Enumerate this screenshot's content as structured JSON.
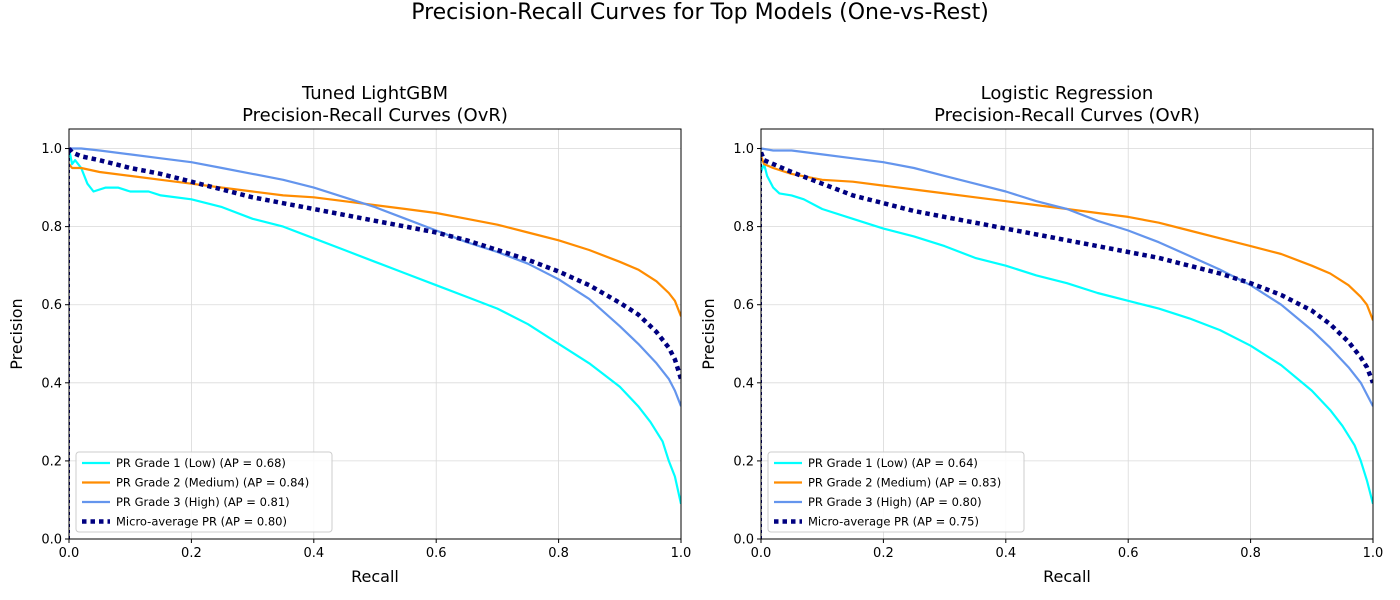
{
  "figure": {
    "title": "Precision-Recall Curves for Top Models (One-vs-Rest)"
  },
  "chart_data": [
    {
      "type": "line",
      "title_line1": "Tuned LightGBM",
      "title_line2": "Precision-Recall Curves (OvR)",
      "xlabel": "Recall",
      "ylabel": "Precision",
      "xlim": [
        0.0,
        1.0
      ],
      "ylim": [
        0.0,
        1.05
      ],
      "xticks": [
        0.0,
        0.2,
        0.4,
        0.6,
        0.8,
        1.0
      ],
      "yticks": [
        0.0,
        0.2,
        0.4,
        0.6,
        0.8,
        1.0
      ],
      "grid": true,
      "legend_position": "lower-left",
      "series": [
        {
          "name": "PR Grade 1 (Low) (AP = 0.68)",
          "color": "#00ffff",
          "style": "solid",
          "points": [
            [
              0,
              1.0
            ],
            [
              0.005,
              0.96
            ],
            [
              0.01,
              0.97
            ],
            [
              0.02,
              0.95
            ],
            [
              0.03,
              0.91
            ],
            [
              0.04,
              0.89
            ],
            [
              0.06,
              0.9
            ],
            [
              0.08,
              0.9
            ],
            [
              0.1,
              0.89
            ],
            [
              0.13,
              0.89
            ],
            [
              0.15,
              0.88
            ],
            [
              0.2,
              0.87
            ],
            [
              0.25,
              0.85
            ],
            [
              0.3,
              0.82
            ],
            [
              0.35,
              0.8
            ],
            [
              0.4,
              0.77
            ],
            [
              0.45,
              0.74
            ],
            [
              0.5,
              0.71
            ],
            [
              0.55,
              0.68
            ],
            [
              0.6,
              0.65
            ],
            [
              0.65,
              0.62
            ],
            [
              0.7,
              0.59
            ],
            [
              0.75,
              0.55
            ],
            [
              0.8,
              0.5
            ],
            [
              0.85,
              0.45
            ],
            [
              0.9,
              0.39
            ],
            [
              0.93,
              0.34
            ],
            [
              0.95,
              0.3
            ],
            [
              0.97,
              0.25
            ],
            [
              0.98,
              0.2
            ],
            [
              0.99,
              0.16
            ],
            [
              1.0,
              0.09
            ]
          ]
        },
        {
          "name": "PR Grade 2 (Medium) (AP = 0.84)",
          "color": "#ff8c00",
          "style": "solid",
          "points": [
            [
              0,
              0.96
            ],
            [
              0.005,
              0.95
            ],
            [
              0.02,
              0.95
            ],
            [
              0.05,
              0.94
            ],
            [
              0.1,
              0.93
            ],
            [
              0.15,
              0.92
            ],
            [
              0.2,
              0.91
            ],
            [
              0.25,
              0.9
            ],
            [
              0.3,
              0.89
            ],
            [
              0.35,
              0.88
            ],
            [
              0.4,
              0.875
            ],
            [
              0.45,
              0.865
            ],
            [
              0.5,
              0.855
            ],
            [
              0.55,
              0.845
            ],
            [
              0.6,
              0.835
            ],
            [
              0.65,
              0.82
            ],
            [
              0.7,
              0.805
            ],
            [
              0.75,
              0.785
            ],
            [
              0.8,
              0.765
            ],
            [
              0.85,
              0.74
            ],
            [
              0.9,
              0.71
            ],
            [
              0.93,
              0.69
            ],
            [
              0.96,
              0.66
            ],
            [
              0.98,
              0.63
            ],
            [
              0.99,
              0.61
            ],
            [
              1.0,
              0.57
            ]
          ]
        },
        {
          "name": "PR Grade 3 (High) (AP = 0.81)",
          "color": "#6495ed",
          "style": "solid",
          "points": [
            [
              0,
              1.0
            ],
            [
              0.02,
              1.0
            ],
            [
              0.05,
              0.995
            ],
            [
              0.1,
              0.985
            ],
            [
              0.15,
              0.975
            ],
            [
              0.2,
              0.965
            ],
            [
              0.25,
              0.95
            ],
            [
              0.3,
              0.935
            ],
            [
              0.35,
              0.92
            ],
            [
              0.4,
              0.9
            ],
            [
              0.45,
              0.875
            ],
            [
              0.5,
              0.85
            ],
            [
              0.55,
              0.82
            ],
            [
              0.6,
              0.79
            ],
            [
              0.65,
              0.76
            ],
            [
              0.7,
              0.735
            ],
            [
              0.75,
              0.705
            ],
            [
              0.8,
              0.665
            ],
            [
              0.85,
              0.615
            ],
            [
              0.9,
              0.545
            ],
            [
              0.93,
              0.5
            ],
            [
              0.96,
              0.45
            ],
            [
              0.98,
              0.41
            ],
            [
              0.99,
              0.38
            ],
            [
              1.0,
              0.34
            ]
          ]
        },
        {
          "name": "Micro-average PR (AP = 0.80)",
          "color": "#000080",
          "style": "dotted",
          "points": [
            [
              0,
              1.0
            ],
            [
              0.005,
              0.99
            ],
            [
              0.02,
              0.98
            ],
            [
              0.05,
              0.97
            ],
            [
              0.1,
              0.95
            ],
            [
              0.15,
              0.935
            ],
            [
              0.2,
              0.915
            ],
            [
              0.25,
              0.895
            ],
            [
              0.3,
              0.875
            ],
            [
              0.35,
              0.86
            ],
            [
              0.4,
              0.845
            ],
            [
              0.45,
              0.83
            ],
            [
              0.5,
              0.815
            ],
            [
              0.55,
              0.8
            ],
            [
              0.6,
              0.785
            ],
            [
              0.65,
              0.765
            ],
            [
              0.7,
              0.74
            ],
            [
              0.75,
              0.715
            ],
            [
              0.8,
              0.685
            ],
            [
              0.85,
              0.65
            ],
            [
              0.9,
              0.605
            ],
            [
              0.93,
              0.575
            ],
            [
              0.96,
              0.53
            ],
            [
              0.98,
              0.49
            ],
            [
              0.99,
              0.46
            ],
            [
              1.0,
              0.41
            ]
          ]
        }
      ]
    },
    {
      "type": "line",
      "title_line1": "Logistic Regression",
      "title_line2": "Precision-Recall Curves (OvR)",
      "xlabel": "Recall",
      "ylabel": "Precision",
      "xlim": [
        0.0,
        1.0
      ],
      "ylim": [
        0.0,
        1.05
      ],
      "xticks": [
        0.0,
        0.2,
        0.4,
        0.6,
        0.8,
        1.0
      ],
      "yticks": [
        0.0,
        0.2,
        0.4,
        0.6,
        0.8,
        1.0
      ],
      "grid": true,
      "legend_position": "lower-left",
      "series": [
        {
          "name": "PR Grade 1 (Low) (AP = 0.64)",
          "color": "#00ffff",
          "style": "solid",
          "points": [
            [
              0,
              0.94
            ],
            [
              0.005,
              0.96
            ],
            [
              0.01,
              0.93
            ],
            [
              0.02,
              0.9
            ],
            [
              0.03,
              0.885
            ],
            [
              0.05,
              0.88
            ],
            [
              0.07,
              0.87
            ],
            [
              0.1,
              0.845
            ],
            [
              0.15,
              0.82
            ],
            [
              0.2,
              0.795
            ],
            [
              0.25,
              0.775
            ],
            [
              0.3,
              0.75
            ],
            [
              0.35,
              0.72
            ],
            [
              0.4,
              0.7
            ],
            [
              0.45,
              0.675
            ],
            [
              0.5,
              0.655
            ],
            [
              0.55,
              0.63
            ],
            [
              0.6,
              0.61
            ],
            [
              0.65,
              0.59
            ],
            [
              0.7,
              0.565
            ],
            [
              0.75,
              0.535
            ],
            [
              0.8,
              0.495
            ],
            [
              0.85,
              0.445
            ],
            [
              0.9,
              0.38
            ],
            [
              0.93,
              0.33
            ],
            [
              0.95,
              0.29
            ],
            [
              0.97,
              0.24
            ],
            [
              0.98,
              0.2
            ],
            [
              0.99,
              0.15
            ],
            [
              1.0,
              0.09
            ]
          ]
        },
        {
          "name": "PR Grade 2 (Medium) (AP = 0.83)",
          "color": "#ff8c00",
          "style": "solid",
          "points": [
            [
              0,
              0.98
            ],
            [
              0.005,
              0.96
            ],
            [
              0.02,
              0.95
            ],
            [
              0.05,
              0.935
            ],
            [
              0.1,
              0.92
            ],
            [
              0.15,
              0.915
            ],
            [
              0.2,
              0.905
            ],
            [
              0.25,
              0.895
            ],
            [
              0.3,
              0.885
            ],
            [
              0.35,
              0.875
            ],
            [
              0.4,
              0.865
            ],
            [
              0.45,
              0.855
            ],
            [
              0.5,
              0.845
            ],
            [
              0.55,
              0.835
            ],
            [
              0.6,
              0.825
            ],
            [
              0.65,
              0.81
            ],
            [
              0.7,
              0.79
            ],
            [
              0.75,
              0.77
            ],
            [
              0.8,
              0.75
            ],
            [
              0.85,
              0.73
            ],
            [
              0.9,
              0.7
            ],
            [
              0.93,
              0.68
            ],
            [
              0.96,
              0.65
            ],
            [
              0.98,
              0.62
            ],
            [
              0.99,
              0.6
            ],
            [
              1.0,
              0.56
            ]
          ]
        },
        {
          "name": "PR Grade 3 (High) (AP = 0.80)",
          "color": "#6495ed",
          "style": "solid",
          "points": [
            [
              0,
              1.0
            ],
            [
              0.02,
              0.995
            ],
            [
              0.05,
              0.995
            ],
            [
              0.1,
              0.985
            ],
            [
              0.15,
              0.975
            ],
            [
              0.2,
              0.965
            ],
            [
              0.25,
              0.95
            ],
            [
              0.3,
              0.93
            ],
            [
              0.35,
              0.91
            ],
            [
              0.4,
              0.89
            ],
            [
              0.45,
              0.865
            ],
            [
              0.5,
              0.845
            ],
            [
              0.55,
              0.815
            ],
            [
              0.6,
              0.79
            ],
            [
              0.65,
              0.76
            ],
            [
              0.7,
              0.725
            ],
            [
              0.75,
              0.69
            ],
            [
              0.8,
              0.65
            ],
            [
              0.85,
              0.6
            ],
            [
              0.9,
              0.535
            ],
            [
              0.93,
              0.49
            ],
            [
              0.96,
              0.44
            ],
            [
              0.98,
              0.4
            ],
            [
              0.99,
              0.37
            ],
            [
              1.0,
              0.34
            ]
          ]
        },
        {
          "name": "Micro-average PR (AP = 0.75)",
          "color": "#000080",
          "style": "dotted",
          "points": [
            [
              0,
              0.99
            ],
            [
              0.005,
              0.97
            ],
            [
              0.02,
              0.96
            ],
            [
              0.05,
              0.94
            ],
            [
              0.1,
              0.91
            ],
            [
              0.15,
              0.88
            ],
            [
              0.2,
              0.86
            ],
            [
              0.25,
              0.84
            ],
            [
              0.3,
              0.825
            ],
            [
              0.35,
              0.81
            ],
            [
              0.4,
              0.795
            ],
            [
              0.45,
              0.78
            ],
            [
              0.5,
              0.765
            ],
            [
              0.55,
              0.75
            ],
            [
              0.6,
              0.735
            ],
            [
              0.65,
              0.72
            ],
            [
              0.7,
              0.7
            ],
            [
              0.75,
              0.68
            ],
            [
              0.8,
              0.655
            ],
            [
              0.85,
              0.625
            ],
            [
              0.9,
              0.585
            ],
            [
              0.93,
              0.55
            ],
            [
              0.96,
              0.505
            ],
            [
              0.98,
              0.465
            ],
            [
              0.99,
              0.44
            ],
            [
              1.0,
              0.4
            ]
          ]
        }
      ]
    }
  ]
}
